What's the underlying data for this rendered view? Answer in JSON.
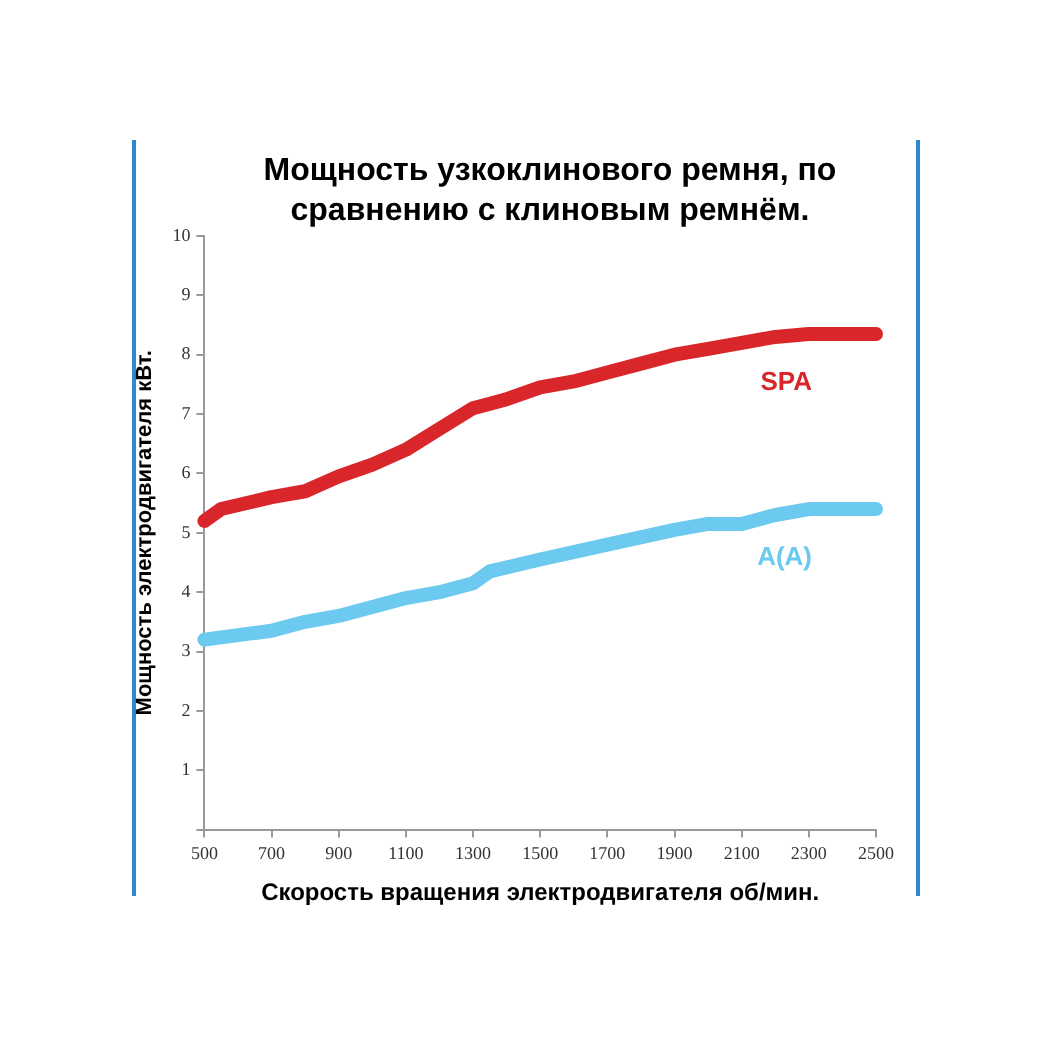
{
  "chart_data": {
    "type": "line",
    "title": "Мощность узкоклинового ремня, по сравнению с клиновым ремнём.",
    "xlabel": "Скорость вращения электродвигателя об/мин.",
    "ylabel": "Мощность электродвигателя кВт.",
    "xlim": [
      500,
      2500
    ],
    "xticks": [
      500,
      700,
      900,
      1100,
      1300,
      1500,
      1700,
      1900,
      2100,
      2300,
      2500
    ],
    "ylim": [
      0,
      10
    ],
    "yticks": [
      {
        "value": 0,
        "label": null
      },
      1,
      2,
      3,
      4,
      5,
      6,
      7,
      8,
      9,
      10
    ],
    "grid": false,
    "legend": false,
    "marker": "none",
    "line_style": "solid",
    "series": [
      {
        "name": "SPA",
        "color": "#d9262a",
        "x": [
          500,
          550,
          700,
          800,
          900,
          1000,
          1100,
          1200,
          1300,
          1400,
          1500,
          1600,
          1700,
          1800,
          1900,
          2000,
          2100,
          2200,
          2300,
          2500
        ],
        "values": [
          5.2,
          5.4,
          5.6,
          5.7,
          5.95,
          6.15,
          6.4,
          6.75,
          7.1,
          7.25,
          7.45,
          7.55,
          7.7,
          7.85,
          8.0,
          8.1,
          8.2,
          8.3,
          8.35,
          8.35
        ]
      },
      {
        "name": "A(A)",
        "color": "#6cc9ef",
        "x": [
          500,
          700,
          800,
          900,
          1000,
          1100,
          1200,
          1300,
          1350,
          1500,
          1700,
          1900,
          2000,
          2100,
          2200,
          2300,
          2500
        ],
        "values": [
          3.2,
          3.35,
          3.5,
          3.6,
          3.75,
          3.9,
          4.0,
          4.15,
          4.35,
          4.55,
          4.8,
          5.05,
          5.15,
          5.15,
          5.3,
          5.4,
          5.4
        ]
      }
    ]
  }
}
